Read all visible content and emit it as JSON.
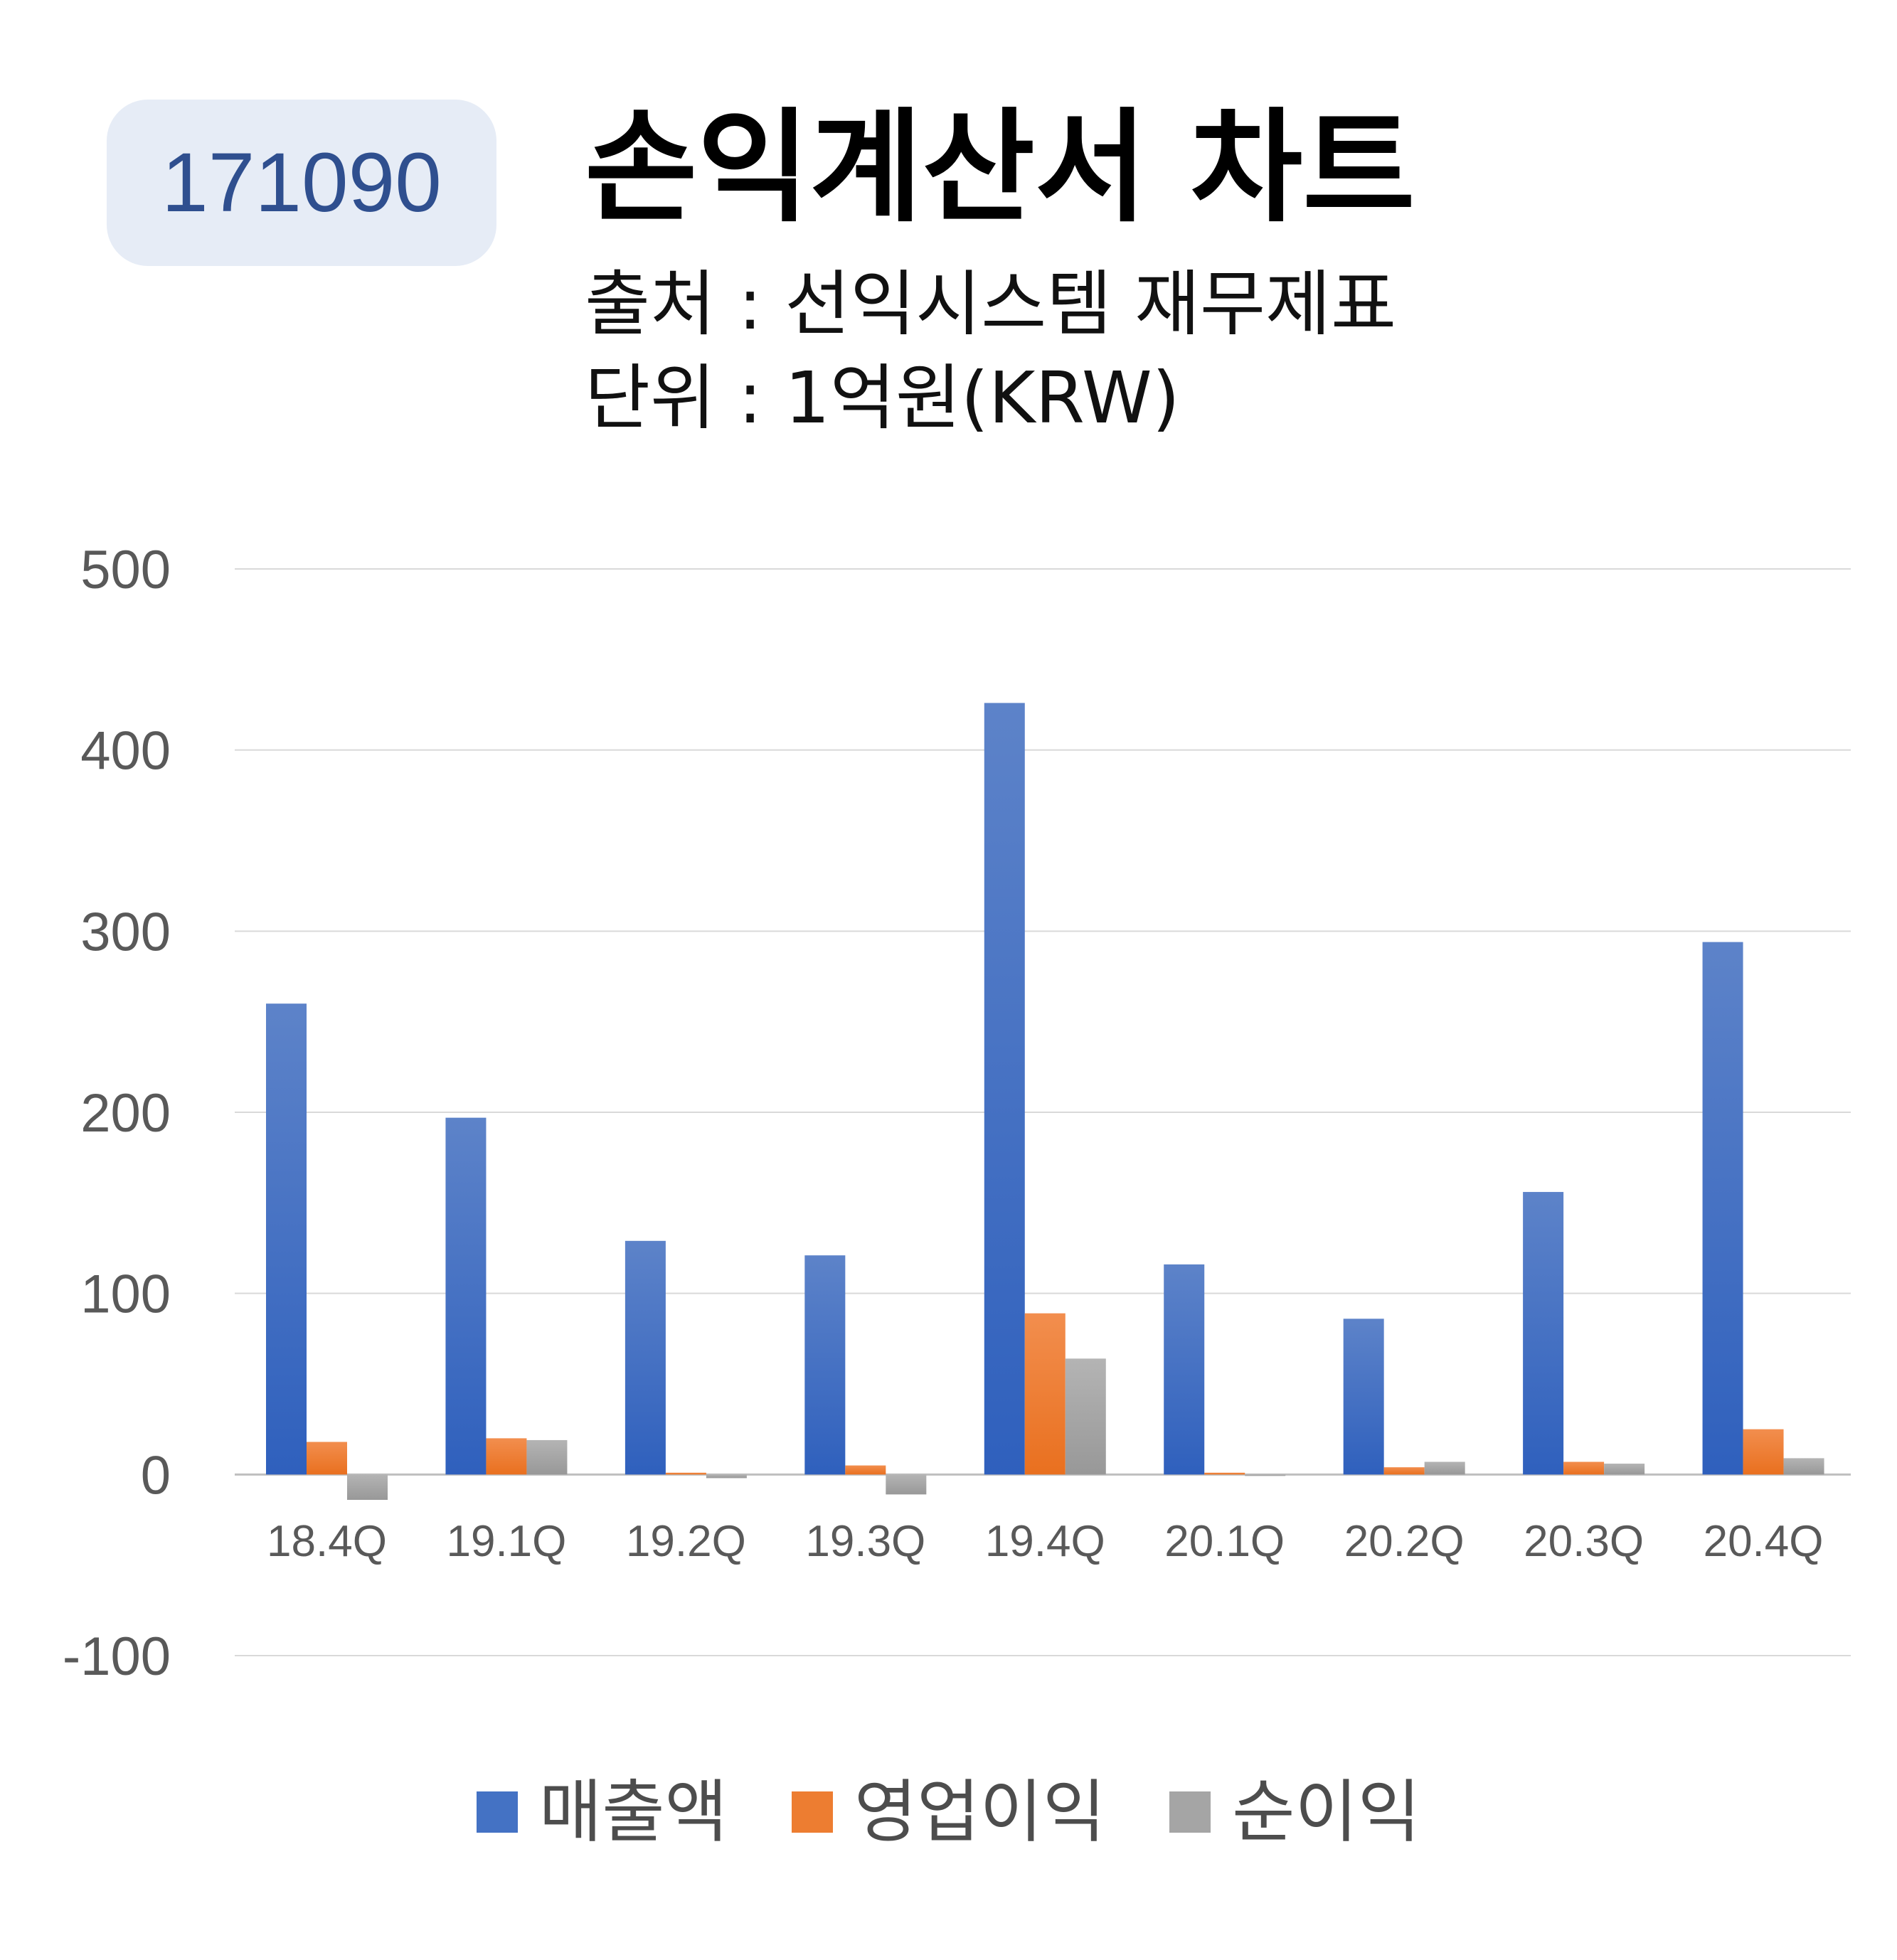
{
  "header": {
    "code": "171090",
    "title": "손익계산서 차트",
    "source": "출처 : 선익시스템 재무제표",
    "unit": "단위 : 1억원(KRW)"
  },
  "colors": {
    "revenue": "#4472c4",
    "operating_profit": "#ed7d31",
    "net_profit": "#a5a5a5",
    "grid": "#d9d9d9",
    "badge_bg": "#e6ecf6",
    "badge_text": "#2f4f8f"
  },
  "chart_data": {
    "type": "bar",
    "categories": [
      "18.4Q",
      "19.1Q",
      "19.2Q",
      "19.3Q",
      "19.4Q",
      "20.1Q",
      "20.2Q",
      "20.3Q",
      "20.4Q"
    ],
    "series": [
      {
        "name": "매출액",
        "values": [
          260,
          197,
          129,
          121,
          426,
          116,
          86,
          156,
          294
        ]
      },
      {
        "name": "영업이익",
        "values": [
          18,
          20,
          1,
          5,
          89,
          1,
          4,
          7,
          25
        ]
      },
      {
        "name": "순이익",
        "values": [
          -14,
          19,
          -2,
          -11,
          64,
          0,
          7,
          6,
          9
        ]
      }
    ],
    "yticks": [
      "500",
      "400",
      "300",
      "200",
      "100",
      "0",
      "-100"
    ],
    "ylim": [
      -100,
      500
    ],
    "grid": true,
    "legend_position": "bottom"
  }
}
